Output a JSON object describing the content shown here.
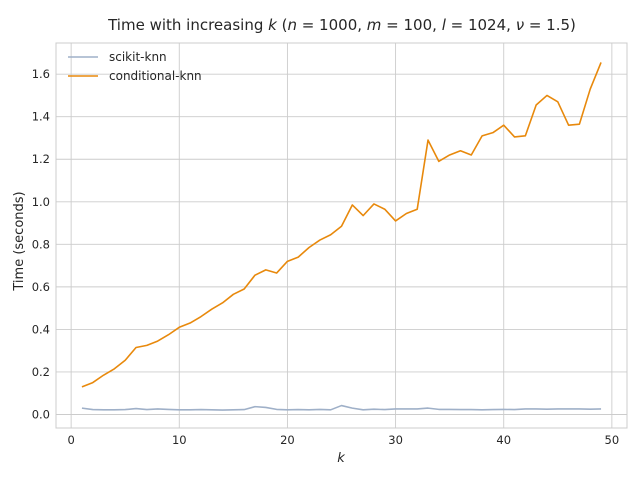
{
  "chart_data": {
    "type": "line",
    "title_prefix": "Time with increasing ",
    "title_var": "k",
    "title_params": [
      {
        "sym": "n",
        "val": "1000"
      },
      {
        "sym": "m",
        "val": "100"
      },
      {
        "sym": "l",
        "val": "1024"
      },
      {
        "sym": "ν",
        "val": "1.5"
      }
    ],
    "xlabel": "k",
    "ylabel": "Time (seconds)",
    "xlim": [
      -1.4,
      51.4
    ],
    "ylim": [
      -0.0635,
      1.7465
    ],
    "xticks": [
      0,
      10,
      20,
      30,
      40,
      50
    ],
    "xtick_labels": [
      "0",
      "10",
      "20",
      "30",
      "40",
      "50"
    ],
    "yticks": [
      0.0,
      0.2,
      0.4,
      0.6,
      0.8,
      1.0,
      1.2,
      1.4,
      1.6
    ],
    "ytick_labels": [
      "0.0",
      "0.2",
      "0.4",
      "0.6",
      "0.8",
      "1.0",
      "1.2",
      "1.4",
      "1.6"
    ],
    "grid": true,
    "legend_position": "top-left",
    "x": [
      1,
      2,
      3,
      4,
      5,
      6,
      7,
      8,
      9,
      10,
      11,
      12,
      13,
      14,
      15,
      16,
      17,
      18,
      19,
      20,
      21,
      22,
      23,
      24,
      25,
      26,
      27,
      28,
      29,
      30,
      31,
      32,
      33,
      34,
      35,
      36,
      37,
      38,
      39,
      40,
      41,
      42,
      43,
      44,
      45,
      46,
      47,
      48,
      49
    ],
    "series": [
      {
        "name": "scikit-knn",
        "color": "#9fb0c8",
        "values": [
          0.03,
          0.023,
          0.022,
          0.022,
          0.023,
          0.028,
          0.023,
          0.026,
          0.024,
          0.022,
          0.022,
          0.023,
          0.022,
          0.021,
          0.022,
          0.023,
          0.037,
          0.033,
          0.024,
          0.022,
          0.023,
          0.022,
          0.024,
          0.022,
          0.042,
          0.03,
          0.022,
          0.025,
          0.023,
          0.026,
          0.026,
          0.026,
          0.03,
          0.024,
          0.024,
          0.023,
          0.023,
          0.022,
          0.023,
          0.024,
          0.023,
          0.026,
          0.026,
          0.025,
          0.026,
          0.026,
          0.026,
          0.025,
          0.026
        ]
      },
      {
        "name": "conditional-knn",
        "color": "#e8890c",
        "values": [
          0.13,
          0.15,
          0.185,
          0.215,
          0.255,
          0.315,
          0.325,
          0.345,
          0.375,
          0.41,
          0.43,
          0.46,
          0.495,
          0.525,
          0.565,
          0.59,
          0.655,
          0.68,
          0.665,
          0.72,
          0.74,
          0.785,
          0.82,
          0.845,
          0.885,
          0.985,
          0.935,
          0.99,
          0.965,
          0.91,
          0.945,
          0.965,
          1.29,
          1.19,
          1.22,
          1.24,
          1.22,
          1.31,
          1.325,
          1.36,
          1.305,
          1.31,
          1.455,
          1.5,
          1.47,
          1.36,
          1.365,
          1.53,
          1.655
        ]
      }
    ]
  }
}
